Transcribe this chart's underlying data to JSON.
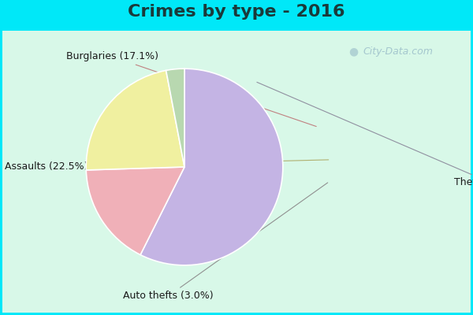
{
  "title": "Crimes by type - 2016",
  "slices": [
    {
      "label": "Thefts",
      "pct": 57.4,
      "color": "#c4b4e4"
    },
    {
      "label": "Burglaries",
      "pct": 17.1,
      "color": "#f0b0b8"
    },
    {
      "label": "Assaults",
      "pct": 22.5,
      "color": "#f0f0a0"
    },
    {
      "label": "Auto thefts",
      "pct": 3.0,
      "color": "#b8d8b0"
    }
  ],
  "background_color_top": "#00e8f8",
  "background_color_inner": "#d8f8e8",
  "title_fontsize": 16,
  "label_fontsize": 9,
  "watermark": "City-Data.com",
  "watermark_color": "#98bbc8",
  "title_color": "#1a3a3a"
}
